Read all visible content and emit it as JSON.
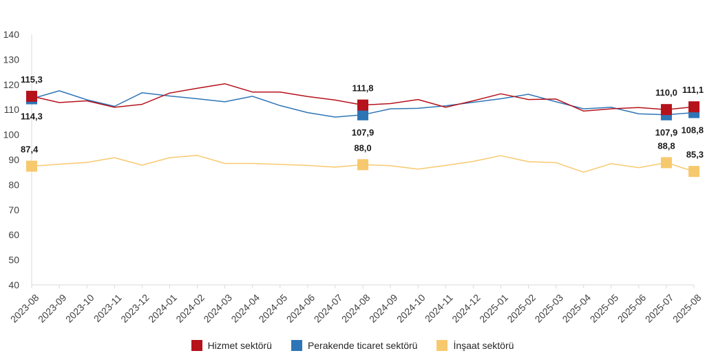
{
  "chart_data": {
    "type": "line",
    "categories": [
      "2023-08",
      "2023-09",
      "2023-10",
      "2023-11",
      "2023-12",
      "2024-01",
      "2024-02",
      "2024-03",
      "2024-04",
      "2024-05",
      "2024-06",
      "2024-07",
      "2024-08",
      "2024-09",
      "2024-10",
      "2024-11",
      "2024-12",
      "2025-01",
      "2025-02",
      "2025-03",
      "2025-04",
      "2025-05",
      "2025-06",
      "2025-07",
      "2025-08"
    ],
    "ylim": [
      40,
      140
    ],
    "yticks": [
      "40",
      "50",
      "60",
      "70",
      "80",
      "90",
      "100",
      "110",
      "120",
      "130",
      "140"
    ],
    "grid": false,
    "legend_position": "bottom",
    "series": [
      {
        "name": "Hizmet sektörü",
        "color": "#b5121b",
        "values": [
          115.3,
          112.8,
          113.5,
          110.9,
          112.1,
          116.6,
          118.5,
          120.3,
          117.0,
          117.0,
          115.2,
          113.8,
          111.8,
          112.4,
          114.0,
          110.9,
          113.5,
          116.3,
          114.0,
          114.2,
          109.4,
          110.3,
          110.8,
          110.0,
          111.1
        ],
        "labeled_points": [
          {
            "index": 0,
            "label": "115,3"
          },
          {
            "index": 12,
            "label": "111,8"
          },
          {
            "index": 23,
            "label": "110,0"
          },
          {
            "index": 24,
            "label": "111,1"
          }
        ]
      },
      {
        "name": "Perakende ticaret sektörü",
        "color": "#2e75b6",
        "values": [
          114.3,
          117.5,
          113.9,
          111.3,
          116.7,
          115.4,
          114.3,
          113.1,
          115.3,
          111.6,
          108.8,
          107.0,
          107.9,
          110.3,
          110.5,
          111.5,
          112.9,
          114.3,
          116.1,
          113.1,
          110.3,
          110.9,
          108.3,
          107.9,
          108.8
        ],
        "labeled_points": [
          {
            "index": 0,
            "label": "114,3"
          },
          {
            "index": 12,
            "label": "107,9"
          },
          {
            "index": 23,
            "label": "107,9"
          },
          {
            "index": 24,
            "label": "108,8"
          }
        ]
      },
      {
        "name": "İnşaat sektörü",
        "color": "#f7c96e",
        "values": [
          87.4,
          88.2,
          88.9,
          90.8,
          87.8,
          90.8,
          91.7,
          88.5,
          88.5,
          88.1,
          87.7,
          87.0,
          88.0,
          87.6,
          86.2,
          87.7,
          89.3,
          91.6,
          89.2,
          88.8,
          85.0,
          88.4,
          86.8,
          88.8,
          85.3
        ],
        "labeled_points": [
          {
            "index": 0,
            "label": "87,4"
          },
          {
            "index": 12,
            "label": "88,0"
          },
          {
            "index": 23,
            "label": "88,8"
          },
          {
            "index": 24,
            "label": "85,3"
          }
        ]
      }
    ]
  }
}
